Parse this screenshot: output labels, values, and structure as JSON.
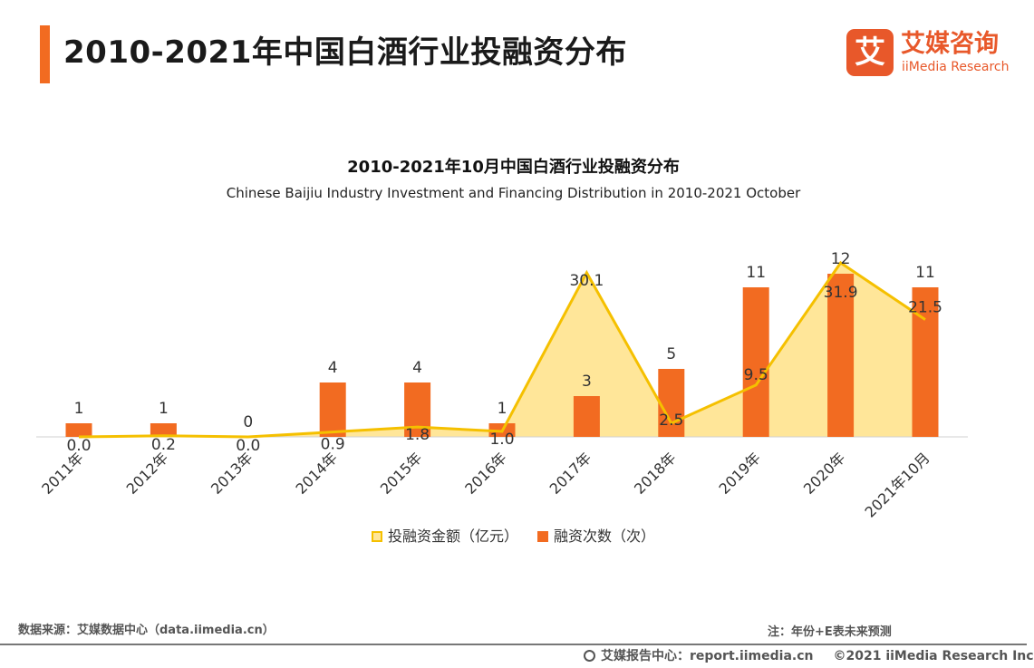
{
  "page": {
    "title": "2010-2021年中国白酒行业投融资分布"
  },
  "logo": {
    "glyph": "艾",
    "cn": "艾媒咨询",
    "en": "iiMedia Research"
  },
  "chart_data": {
    "type": "bar",
    "title": "2010-2021年10月中国白酒行业投融资分布",
    "subtitle": "Chinese Baijiu Industry Investment and Financing Distribution in 2010-2021 October",
    "categories": [
      "2011年",
      "2012年",
      "2013年",
      "2014年",
      "2015年",
      "2016年",
      "2017年",
      "2018年",
      "2019年",
      "2020年",
      "2021年10月"
    ],
    "series": [
      {
        "name": "投融资金额（亿元）",
        "type": "area",
        "color": "#f5c000",
        "fill": "#ffe699",
        "values": [
          0.0,
          0.2,
          0.0,
          0.9,
          1.8,
          1.0,
          30.1,
          2.5,
          9.5,
          31.9,
          21.5
        ],
        "labels": [
          "0.0",
          "0.2",
          "0.0",
          "0.9",
          "1.8",
          "1.0",
          "30.1",
          "2.5",
          "9.5",
          "31.9",
          "21.5"
        ]
      },
      {
        "name": "融资次数（次）",
        "type": "bar",
        "color": "#f26b21",
        "values": [
          1,
          1,
          0,
          4,
          4,
          1,
          3,
          5,
          11,
          12,
          11
        ],
        "labels": [
          "1",
          "1",
          "0",
          "4",
          "4",
          "1",
          "3",
          "5",
          "11",
          "12",
          "11"
        ]
      }
    ],
    "axes": {
      "area_range": [
        0,
        34
      ],
      "bar_range": [
        0,
        15
      ]
    },
    "grid": false,
    "legend_position": "bottom"
  },
  "footer": {
    "source": "数据来源：艾媒数据中心（data.iimedia.cn）",
    "note": "注：年份+E表未来预测",
    "report": "艾媒报告中心：report.iimedia.cn",
    "copyright": "©2021  iiMedia Research  Inc"
  }
}
